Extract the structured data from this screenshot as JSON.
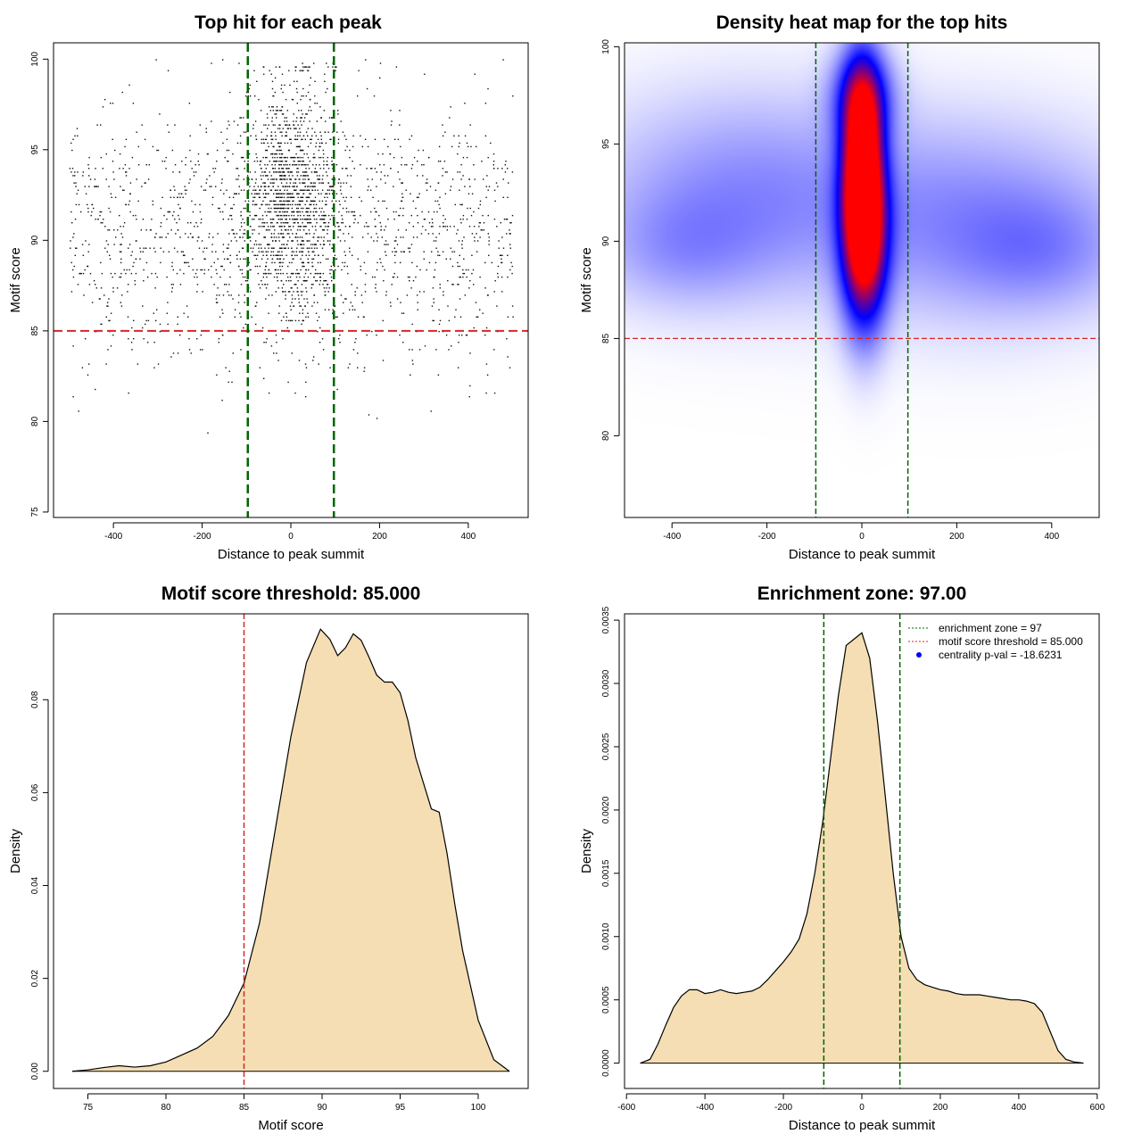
{
  "colors": {
    "threshold_red": "#d62728",
    "zone_green": "#006400",
    "density_fill": "#f5deb3",
    "heat_low": "#ffffff",
    "heat_mid": "#0000ff",
    "heat_high": "#ff0000"
  },
  "chart_data": [
    {
      "id": "scatter",
      "type": "scatter",
      "title": "Top hit for each peak",
      "xlabel": "Distance to peak summit",
      "ylabel": "Motif score",
      "xlim": [
        -535,
        535
      ],
      "ylim": [
        74.7,
        100.9
      ],
      "xticks": [
        -400,
        -200,
        0,
        200,
        400
      ],
      "xtick_labels": [
        "-400",
        "-200",
        "0",
        "200",
        "400"
      ],
      "yticks": [
        75,
        80,
        85,
        90,
        95,
        100
      ],
      "ytick_labels": [
        "75",
        "80",
        "85",
        "90",
        "95",
        "100"
      ],
      "hlines": [
        {
          "y": 85,
          "color": "#d62728",
          "role": "motif score threshold"
        }
      ],
      "vlines": [
        {
          "x": -97,
          "color": "#006400"
        },
        {
          "x": 97,
          "color": "#006400"
        }
      ],
      "points_description_only": false,
      "point_groups": [
        {
          "n": 1600,
          "x_dist": "uniform",
          "x_range": [
            -500,
            500
          ],
          "y_mean": 90.5,
          "y_sd": 3.6,
          "y_range": [
            75.5,
            100
          ]
        },
        {
          "n": 1300,
          "x_dist": "normal",
          "x_mean": 0,
          "x_sd": 55,
          "y_mean": 92.5,
          "y_sd": 3.0,
          "y_range": [
            78,
            99.7
          ]
        }
      ]
    },
    {
      "id": "heatmap",
      "type": "heatmap",
      "title": "Density heat map for the top hits",
      "xlabel": "Distance to peak summit",
      "ylabel": "Motif score",
      "xlim": [
        -500,
        500
      ],
      "ylim": [
        75.8,
        100.2
      ],
      "xticks": [
        -400,
        -200,
        0,
        200,
        400
      ],
      "xtick_labels": [
        "-400",
        "-200",
        "0",
        "200",
        "400"
      ],
      "yticks": [
        80,
        85,
        90,
        95,
        100
      ],
      "ytick_labels": [
        "80",
        "85",
        "90",
        "95",
        "100"
      ],
      "hlines": [
        {
          "y": 85,
          "color": "#d62728"
        }
      ],
      "vlines": [
        {
          "x": -97,
          "color": "#006400"
        },
        {
          "x": 97,
          "color": "#006400"
        }
      ],
      "hotspots": [
        {
          "x": 0,
          "y": 94.3,
          "sx": 28,
          "sy": 3.2,
          "w": 1.0
        },
        {
          "x": 5,
          "y": 90.0,
          "sx": 32,
          "sy": 3.0,
          "w": 0.85
        },
        {
          "x": 0,
          "y": 97.5,
          "sx": 45,
          "sy": 1.6,
          "w": 0.35
        },
        {
          "x": -250,
          "y": 92.5,
          "sx": 220,
          "sy": 3.5,
          "w": 0.18
        },
        {
          "x": 250,
          "y": 91.0,
          "sx": 220,
          "sy": 3.5,
          "w": 0.18
        },
        {
          "x": -380,
          "y": 89.5,
          "sx": 120,
          "sy": 2.0,
          "w": 0.1
        },
        {
          "x": 380,
          "y": 89.5,
          "sx": 120,
          "sy": 2.0,
          "w": 0.1
        }
      ]
    },
    {
      "id": "score_density",
      "type": "area",
      "title": "Motif score threshold: 85.000",
      "xlabel": "Motif score",
      "ylabel": "Density",
      "xlim": [
        72.8,
        103.2
      ],
      "ylim": [
        -0.0037,
        0.0985
      ],
      "xticks": [
        75,
        80,
        85,
        90,
        95,
        100
      ],
      "xtick_labels": [
        "75",
        "80",
        "85",
        "90",
        "95",
        "100"
      ],
      "yticks": [
        0.0,
        0.02,
        0.04,
        0.06,
        0.08
      ],
      "ytick_labels": [
        "0.00",
        "0.02",
        "0.04",
        "0.06",
        "0.08"
      ],
      "vlines": [
        {
          "x": 85,
          "color": "#d62728"
        }
      ],
      "x": [
        74,
        75,
        76,
        77,
        78,
        79,
        80,
        81,
        82,
        83,
        84,
        85,
        86,
        87,
        88,
        89,
        89.9,
        90.5,
        91,
        91.5,
        92,
        92.5,
        93,
        93.5,
        94,
        94.5,
        95,
        95.5,
        96,
        97,
        97.5,
        98,
        98.5,
        99,
        100,
        101,
        102
      ],
      "y": [
        0.0,
        0.0003,
        0.0008,
        0.0012,
        0.0009,
        0.0012,
        0.002,
        0.0035,
        0.005,
        0.0075,
        0.012,
        0.019,
        0.032,
        0.052,
        0.072,
        0.088,
        0.0952,
        0.093,
        0.0895,
        0.0912,
        0.0942,
        0.0928,
        0.0892,
        0.0853,
        0.0838,
        0.0838,
        0.0815,
        0.0755,
        0.0675,
        0.0565,
        0.0558,
        0.047,
        0.036,
        0.026,
        0.011,
        0.0025,
        0.0
      ]
    },
    {
      "id": "distance_density",
      "type": "area",
      "title": "Enrichment zone: 97.00",
      "xlabel": "Distance to peak summit",
      "ylabel": "Density",
      "xlim": [
        -605,
        605
      ],
      "ylim": [
        -0.0002,
        0.00355
      ],
      "xticks": [
        -600,
        -400,
        -200,
        0,
        200,
        400,
        600
      ],
      "xtick_labels": [
        "-600",
        "-400",
        "-200",
        "0",
        "200",
        "400",
        "600"
      ],
      "yticks": [
        0.0,
        0.0005,
        0.001,
        0.0015,
        0.002,
        0.0025,
        0.003,
        0.0035
      ],
      "ytick_labels": [
        "0.0000",
        "0.0005",
        "0.0010",
        "0.0015",
        "0.0020",
        "0.0025",
        "0.0030",
        "0.0035"
      ],
      "vlines": [
        {
          "x": -97,
          "color": "#006400"
        },
        {
          "x": 97,
          "color": "#006400"
        }
      ],
      "legend": {
        "placement": "top-right",
        "entries": [
          {
            "label": "enrichment zone = 97",
            "style": "dotted-line",
            "color": "#006400"
          },
          {
            "label": "motif score threshold = 85.000",
            "style": "dotted-line",
            "color": "#d62728"
          },
          {
            "label": "centrality p-val = -18.6231",
            "style": "point",
            "color": "#0000ff"
          }
        ]
      },
      "x": [
        -565,
        -540,
        -520,
        -500,
        -480,
        -460,
        -440,
        -420,
        -400,
        -380,
        -360,
        -340,
        -320,
        -300,
        -280,
        -260,
        -240,
        -220,
        -200,
        -180,
        -160,
        -140,
        -120,
        -100,
        -80,
        -60,
        -40,
        -20,
        0,
        20,
        40,
        60,
        80,
        100,
        120,
        140,
        160,
        180,
        200,
        220,
        240,
        260,
        280,
        300,
        320,
        340,
        360,
        380,
        400,
        420,
        440,
        460,
        480,
        500,
        520,
        540,
        565
      ],
      "y": [
        0.0,
        3e-05,
        0.00015,
        0.0003,
        0.00044,
        0.00053,
        0.00058,
        0.00058,
        0.00055,
        0.00056,
        0.00058,
        0.00056,
        0.00055,
        0.00056,
        0.00057,
        0.0006,
        0.00066,
        0.00073,
        0.0008,
        0.00088,
        0.00098,
        0.00118,
        0.0015,
        0.0019,
        0.0024,
        0.0029,
        0.0033,
        0.00335,
        0.0034,
        0.0032,
        0.0027,
        0.0021,
        0.0015,
        0.001,
        0.00075,
        0.00066,
        0.00062,
        0.0006,
        0.00058,
        0.00057,
        0.00055,
        0.00054,
        0.00054,
        0.00054,
        0.00053,
        0.00052,
        0.00051,
        0.0005,
        0.0005,
        0.00049,
        0.00047,
        0.0004,
        0.00025,
        0.0001,
        3e-05,
        1e-05,
        0.0
      ]
    }
  ]
}
